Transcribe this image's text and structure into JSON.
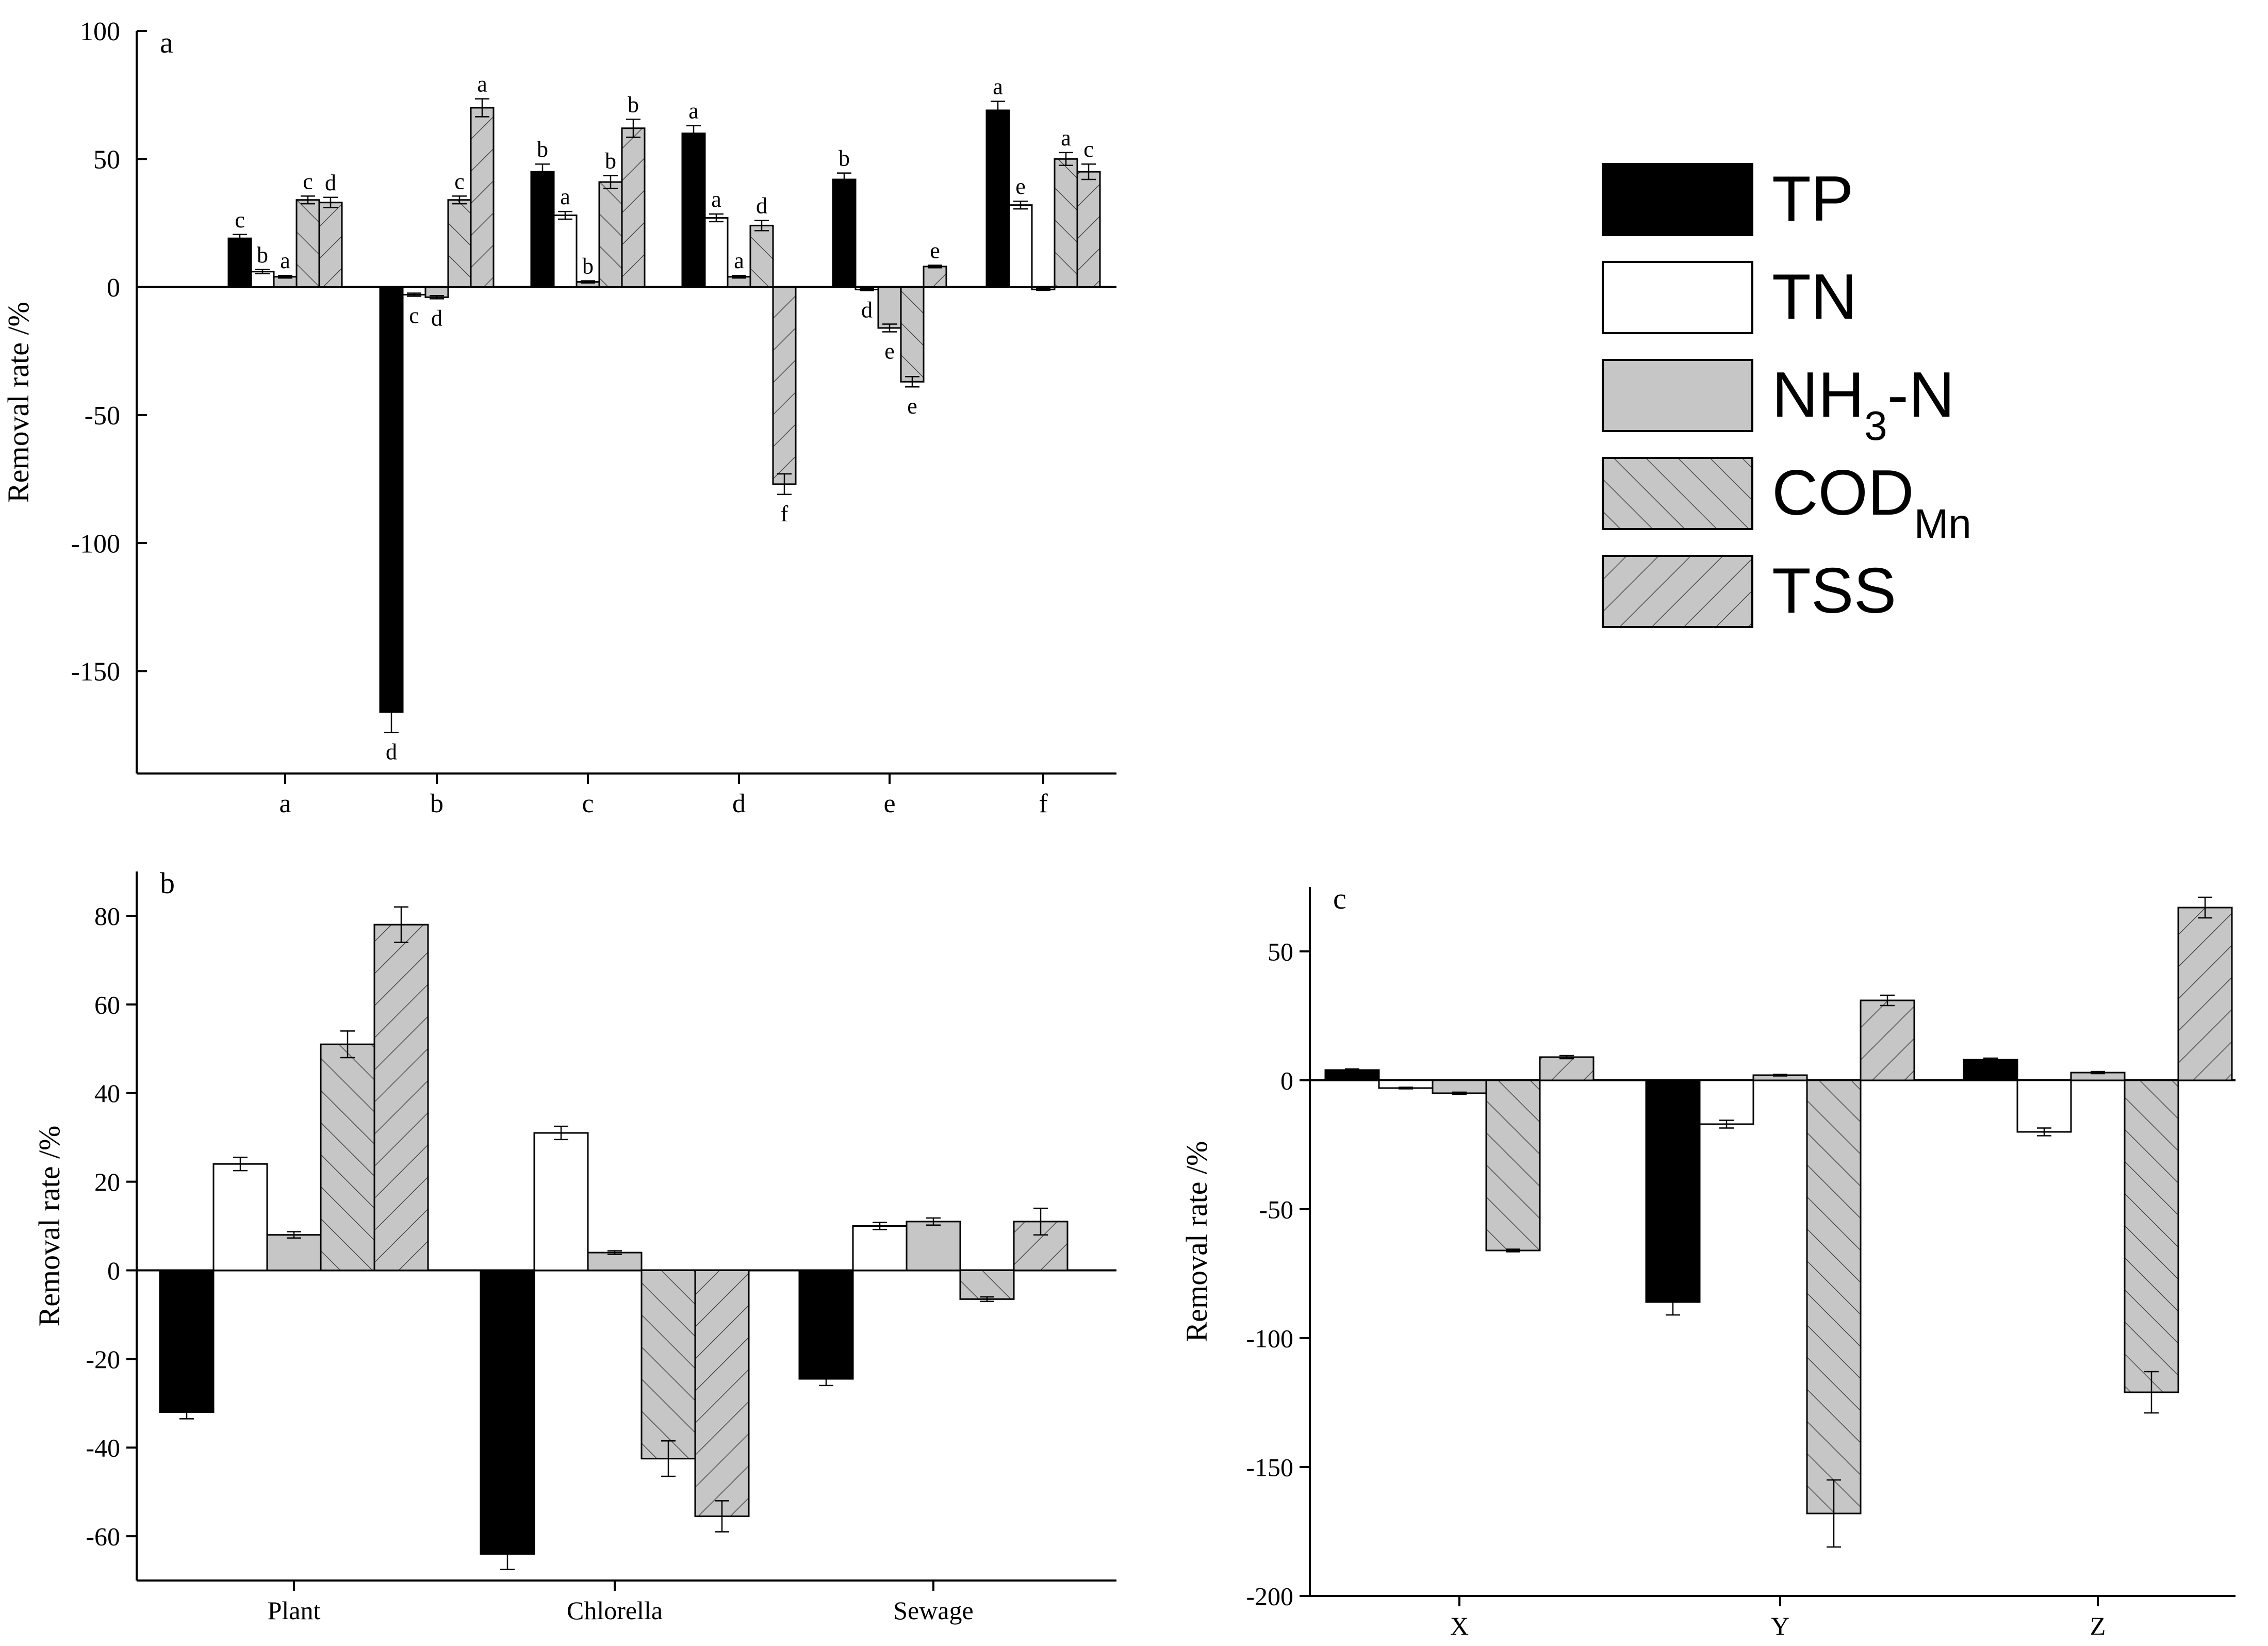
{
  "series_names": [
    "TP",
    "TN",
    "NH3-N",
    "CODMn",
    "TSS"
  ],
  "legend": {
    "items": [
      {
        "label": "TP",
        "sub": ""
      },
      {
        "label": "TN",
        "sub": ""
      },
      {
        "label": "NH",
        "sub": "3",
        "suffix": "-N"
      },
      {
        "label": "COD",
        "sub": "Mn",
        "suffix": ""
      },
      {
        "label": "TSS",
        "sub": ""
      }
    ]
  },
  "chart_data": [
    {
      "type": "bar",
      "panel_label": "a",
      "ylabel": "Removal rate /%",
      "xlabel": "",
      "ylim": [
        -190,
        100
      ],
      "yticks": [
        100,
        50,
        0,
        -50,
        -100,
        -150
      ],
      "categories": [
        "a",
        "b",
        "c",
        "d",
        "e",
        "f"
      ],
      "series": [
        {
          "name": "TP",
          "values": [
            19,
            -166,
            45,
            60,
            42,
            69
          ],
          "err": [
            1.5,
            8,
            3,
            3,
            2.5,
            3.5
          ],
          "letters": [
            "c",
            "d",
            "b",
            "a",
            "b",
            "a"
          ]
        },
        {
          "name": "TN",
          "values": [
            6,
            -3,
            28,
            27,
            -1,
            32
          ],
          "err": [
            0.8,
            0.6,
            1.5,
            1.5,
            0.4,
            1.5
          ],
          "letters": [
            "b",
            "c",
            "a",
            "a",
            "d",
            "e"
          ]
        },
        {
          "name": "NH3-N",
          "values": [
            4,
            -4,
            2,
            4,
            -16,
            -1
          ],
          "err": [
            0.5,
            0.6,
            0.4,
            0.5,
            1.5,
            0.3
          ],
          "letters": [
            "a",
            "d",
            "b",
            "a",
            "e",
            ""
          ]
        },
        {
          "name": "CODMn",
          "values": [
            34,
            34,
            41,
            24,
            -37,
            50
          ],
          "err": [
            1.5,
            1.5,
            2.5,
            2,
            2,
            2.5
          ],
          "letters": [
            "c",
            "c",
            "b",
            "d",
            "e",
            "a"
          ]
        },
        {
          "name": "TSS",
          "values": [
            33,
            70,
            62,
            -77,
            8,
            45
          ],
          "err": [
            2,
            3.5,
            3.5,
            4,
            0.5,
            3
          ],
          "letters": [
            "d",
            "a",
            "b",
            "f",
            "e",
            "c"
          ]
        }
      ]
    },
    {
      "type": "bar",
      "panel_label": "b",
      "ylabel": "Removal rate /%",
      "xlabel": "",
      "ylim": [
        -70,
        90
      ],
      "yticks": [
        80,
        60,
        40,
        20,
        0,
        -20,
        -40,
        -60
      ],
      "categories": [
        "Plant",
        "Chlorella",
        "Sewage"
      ],
      "series": [
        {
          "name": "TP",
          "values": [
            -32,
            -64,
            -24.5
          ],
          "err": [
            1.5,
            3.5,
            1.5
          ]
        },
        {
          "name": "TN",
          "values": [
            24,
            31,
            10
          ],
          "err": [
            1.5,
            1.5,
            0.8
          ]
        },
        {
          "name": "NH3-N",
          "values": [
            8,
            4,
            11
          ],
          "err": [
            0.7,
            0.4,
            0.8
          ]
        },
        {
          "name": "CODMn",
          "values": [
            51,
            -42.5,
            -6.5
          ],
          "err": [
            3,
            4,
            0.5
          ]
        },
        {
          "name": "TSS",
          "values": [
            78,
            -55.5,
            11
          ],
          "err": [
            4,
            3.5,
            3
          ]
        }
      ]
    },
    {
      "type": "bar",
      "panel_label": "c",
      "ylabel": "Removal rate /%",
      "xlabel": "",
      "ylim": [
        -200,
        75
      ],
      "yticks": [
        50,
        0,
        -50,
        -100,
        -150,
        -200
      ],
      "categories": [
        "X",
        "Y",
        "Z"
      ],
      "series": [
        {
          "name": "TP",
          "values": [
            4,
            -86,
            8
          ],
          "err": [
            0.4,
            5,
            0.6
          ]
        },
        {
          "name": "TN",
          "values": [
            -3,
            -17,
            -20
          ],
          "err": [
            0.3,
            1.5,
            1.5
          ]
        },
        {
          "name": "NH3-N",
          "values": [
            -5,
            2,
            3
          ],
          "err": [
            0.4,
            0.3,
            0.4
          ]
        },
        {
          "name": "CODMn",
          "values": [
            -66,
            -168,
            -121
          ],
          "err": [
            0.5,
            13,
            8
          ]
        },
        {
          "name": "TSS",
          "values": [
            9,
            31,
            67
          ],
          "err": [
            0.6,
            2,
            4
          ]
        }
      ]
    }
  ]
}
